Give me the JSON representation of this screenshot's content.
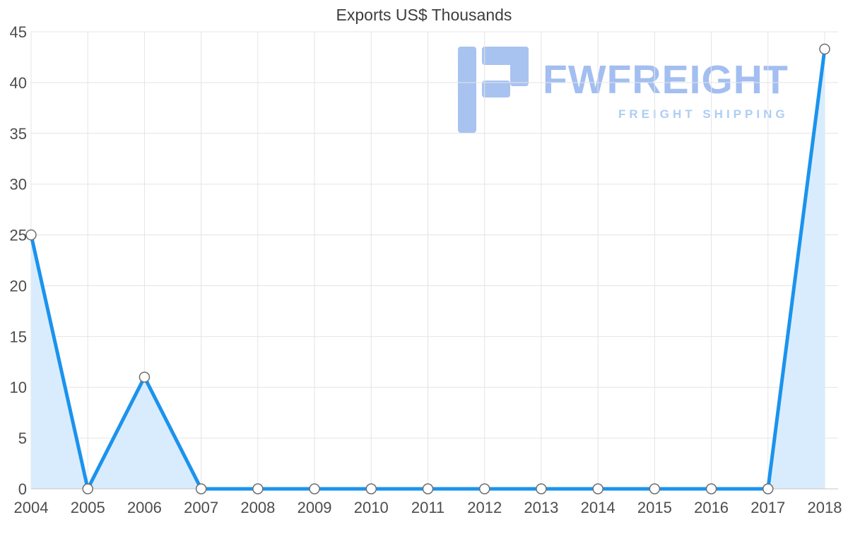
{
  "chart": {
    "title": "Exports US$ Thousands"
  },
  "watermark": {
    "brand": "FWFREIGHT",
    "tagline": "FREIGHT SHIPPING"
  },
  "chart_data": {
    "type": "line",
    "title": "Exports US$ Thousands",
    "x": [
      "2004",
      "2005",
      "2006",
      "2007",
      "2008",
      "2009",
      "2010",
      "2011",
      "2012",
      "2013",
      "2014",
      "2015",
      "2016",
      "2017",
      "2018"
    ],
    "values": [
      25,
      0,
      11,
      0,
      0,
      0,
      0,
      0,
      0,
      0,
      0,
      0,
      0,
      0,
      43.3
    ],
    "xlabel": "",
    "ylabel": "",
    "ylim": [
      0,
      45
    ],
    "ytick_step": 5,
    "grid": true,
    "legend": false,
    "area_fill": true,
    "colors": {
      "line": "#1b93ed",
      "area": "#d9ecfd",
      "marker_fill": "#ffffff",
      "marker_stroke": "#6e6e6e",
      "grid": "#e4e4e4",
      "axis": "#c6c6c6",
      "tick_text": "#4d4d4d"
    }
  }
}
